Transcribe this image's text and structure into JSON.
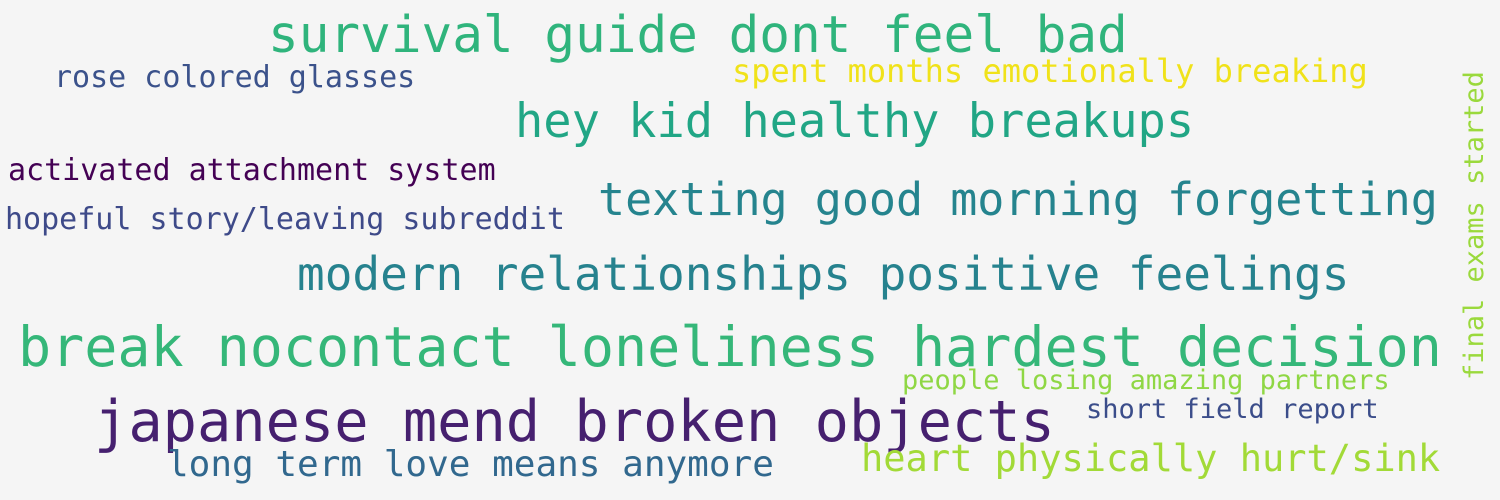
{
  "words": [
    {
      "text": "survival guide dont feel bad",
      "color": "#2fb47c"
    },
    {
      "text": "rose colored glasses",
      "color": "#3b528b"
    },
    {
      "text": "spent months emotionally breaking",
      "color": "#f0e21a"
    },
    {
      "text": "hey kid healthy breakups",
      "color": "#21a685"
    },
    {
      "text": "activated attachment system",
      "color": "#440154"
    },
    {
      "text": "texting good morning forgetting",
      "color": "#25848e"
    },
    {
      "text": "hopeful story/leaving subreddit",
      "color": "#3e4a89"
    },
    {
      "text": "modern relationships positive feelings",
      "color": "#26828e"
    },
    {
      "text": "break nocontact loneliness hardest decision",
      "color": "#35b779"
    },
    {
      "text": "people losing amazing partners",
      "color": "#8fd744"
    },
    {
      "text": "japanese mend broken objects",
      "color": "#46206f"
    },
    {
      "text": "short field report",
      "color": "#3b4d8a"
    },
    {
      "text": "long term love means anymore",
      "color": "#31688e"
    },
    {
      "text": "heart physically hurt/sink",
      "color": "#a2da37"
    },
    {
      "text": "final exams started",
      "color": "#9ad93c"
    }
  ]
}
